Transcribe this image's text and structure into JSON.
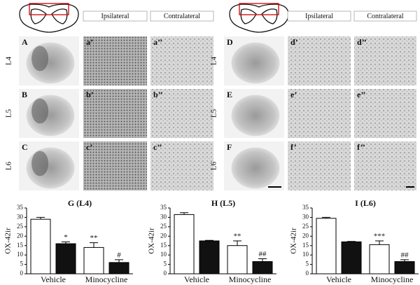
{
  "panels": {
    "headers": [
      "Ipsilateral",
      "Contralateral",
      "Ipsilateral",
      "Contralateral"
    ],
    "rows": [
      "L4",
      "L5",
      "L6",
      "L4",
      "L5",
      "L6"
    ],
    "labels": [
      [
        "A",
        "a’",
        "a’’"
      ],
      [
        "B",
        "b’",
        "b’’"
      ],
      [
        "C",
        "c’",
        "c’’"
      ],
      [
        "D",
        "d’",
        "d’’"
      ],
      [
        "E",
        "e’",
        "e’’"
      ],
      [
        "F",
        "f’",
        "f’’"
      ]
    ]
  },
  "chart_data": [
    {
      "type": "bar",
      "title": "G (L4)",
      "ylabel": "OX-42ir",
      "categories": [
        null,
        null,
        null,
        null
      ],
      "groups": [
        "Vehicle",
        "Minocycline"
      ],
      "values": [
        29,
        16,
        14,
        6
      ],
      "errors": [
        1,
        1,
        2.5,
        1.5
      ],
      "colors": [
        "#ffffff",
        "#111111",
        "#ffffff",
        "#111111"
      ],
      "annotations": [
        null,
        "*",
        "**",
        "#"
      ],
      "ylim": [
        0,
        35
      ],
      "yticks": [
        0,
        5,
        10,
        15,
        20,
        25,
        30,
        35
      ]
    },
    {
      "type": "bar",
      "title": "H (L5)",
      "ylabel": "OX-42ir",
      "categories": [
        null,
        null,
        null,
        null
      ],
      "groups": [
        "Vehicle",
        "Minocycline"
      ],
      "values": [
        31.5,
        17.5,
        15,
        6.5
      ],
      "errors": [
        1,
        0.3,
        2.5,
        1.5
      ],
      "colors": [
        "#ffffff",
        "#111111",
        "#ffffff",
        "#111111"
      ],
      "annotations": [
        null,
        null,
        "**",
        "##"
      ],
      "ylim": [
        0,
        35
      ],
      "yticks": [
        0,
        5,
        10,
        15,
        20,
        25,
        30,
        35
      ]
    },
    {
      "type": "bar",
      "title": "I (L6)",
      "ylabel": "OX-42ir",
      "categories": [
        null,
        null,
        null,
        null
      ],
      "groups": [
        "Vehicle",
        "Minocycline"
      ],
      "values": [
        29.5,
        17,
        15.5,
        6.5
      ],
      "errors": [
        0.5,
        0.2,
        2,
        1
      ],
      "colors": [
        "#ffffff",
        "#111111",
        "#ffffff",
        "#111111"
      ],
      "annotations": [
        null,
        null,
        "***",
        "##"
      ],
      "ylim": [
        0,
        35
      ],
      "yticks": [
        0,
        5,
        10,
        15,
        20,
        25,
        30,
        35
      ]
    }
  ]
}
